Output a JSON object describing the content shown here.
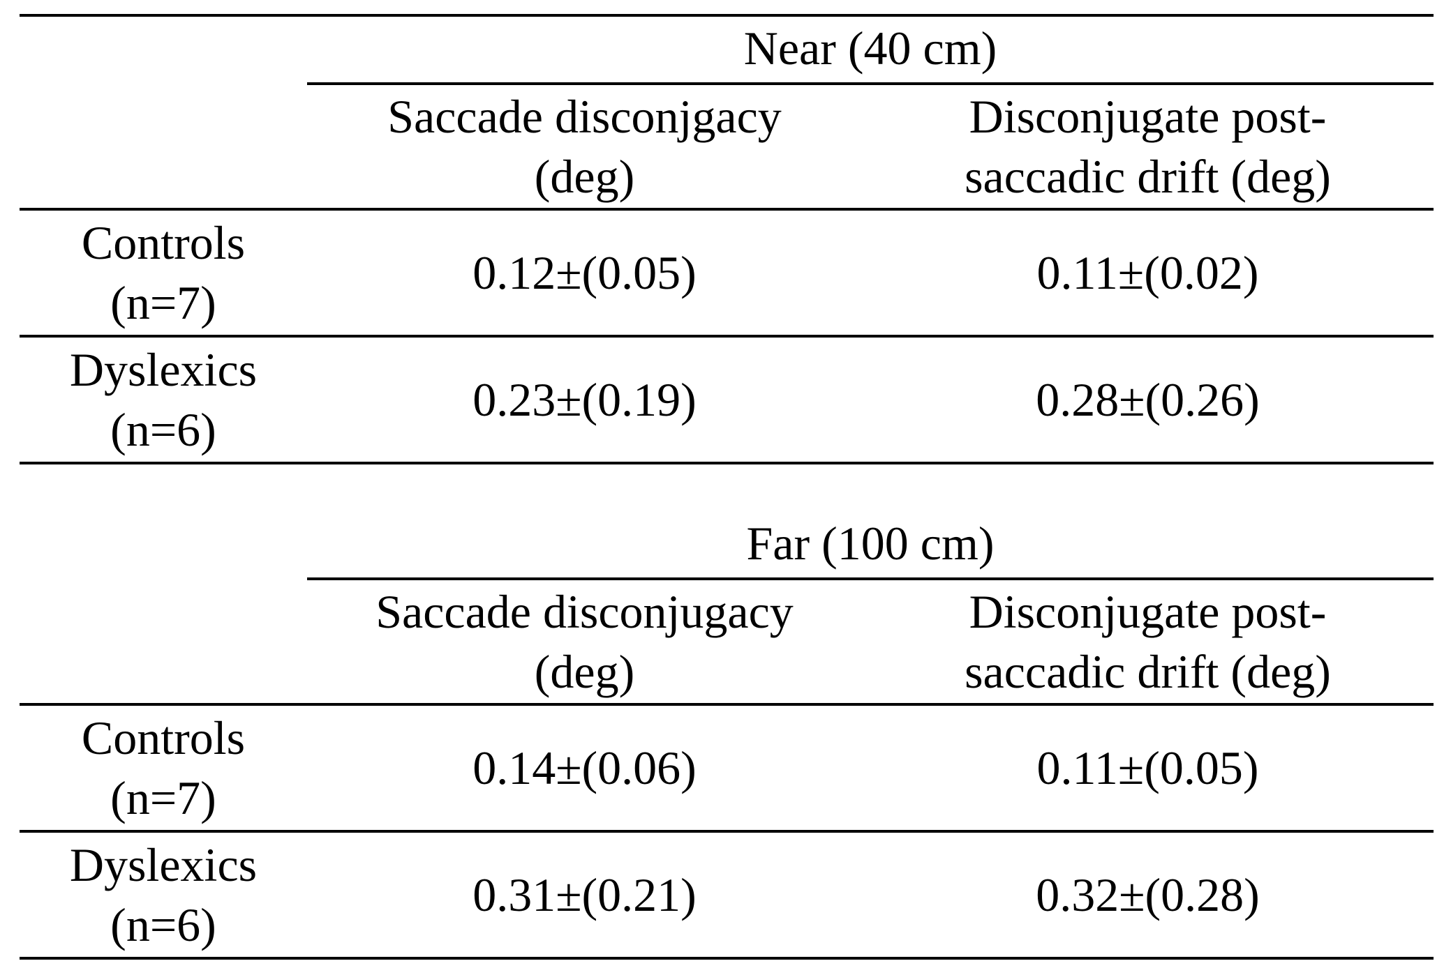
{
  "tables": [
    {
      "group_title": "Near (40 cm)",
      "col_a_header": [
        "Saccade disconjgacy",
        "(deg)"
      ],
      "col_b_header": [
        "Disconjugate post-",
        "saccadic drift (deg)"
      ],
      "rows": [
        {
          "label": [
            "Controls",
            "(n=7)"
          ],
          "a": "0.12±(0.05)",
          "b": "0.11±(0.02)"
        },
        {
          "label": [
            "Dyslexics",
            "(n=6)"
          ],
          "a": "0.23±(0.19)",
          "b": "0.28±(0.26)"
        }
      ]
    },
    {
      "group_title": "Far (100 cm)",
      "col_a_header": [
        "Saccade disconjugacy",
        "(deg)"
      ],
      "col_b_header": [
        "Disconjugate post-",
        "saccadic drift (deg)"
      ],
      "rows": [
        {
          "label": [
            "Controls",
            "(n=7)"
          ],
          "a": "0.14±(0.06)",
          "b": "0.11±(0.05)"
        },
        {
          "label": [
            "Dyslexics",
            "(n=6)"
          ],
          "a": "0.31±(0.21)",
          "b": "0.32±(0.28)"
        }
      ]
    }
  ]
}
